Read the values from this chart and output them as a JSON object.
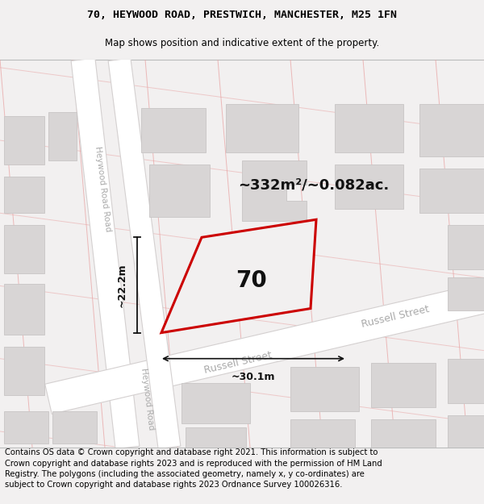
{
  "title_line1": "70, HEYWOOD ROAD, PRESTWICH, MANCHESTER, M25 1FN",
  "title_line2": "Map shows position and indicative extent of the property.",
  "footer_text": "Contains OS data © Crown copyright and database right 2021. This information is subject to Crown copyright and database rights 2023 and is reproduced with the permission of HM Land Registry. The polygons (including the associated geometry, namely x, y co-ordinates) are subject to Crown copyright and database rights 2023 Ordnance Survey 100026316.",
  "area_label": "~332m²/~0.082ac.",
  "number_label": "70",
  "dim_width": "~30.1m",
  "dim_height": "~22.2m",
  "bg_color": "#f2f0f0",
  "road_fill": "#ffffff",
  "road_edge": "#d4d0d0",
  "building_fill": "#d8d5d5",
  "building_edge": "#c8c5c5",
  "road_pink": "#e8a0a0",
  "plot_red": "#cc0000",
  "plot_fill": "#f2f0f0",
  "dim_color": "#111111",
  "street_color": "#aaaaaa",
  "title_fs": 9.5,
  "footer_fs": 7.2,
  "number_fs": 20,
  "area_fs": 13,
  "dim_fs": 9,
  "street_fs": 9
}
